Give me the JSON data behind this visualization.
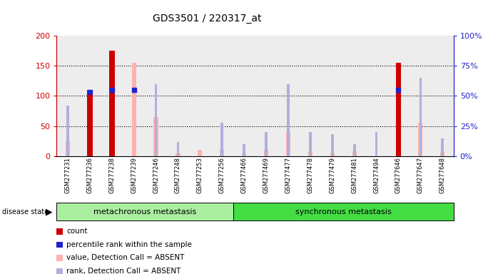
{
  "title": "GDS3501 / 220317_at",
  "samples": [
    "GSM277231",
    "GSM277236",
    "GSM277238",
    "GSM277239",
    "GSM277246",
    "GSM277248",
    "GSM277253",
    "GSM277256",
    "GSM277466",
    "GSM277469",
    "GSM277477",
    "GSM277478",
    "GSM277479",
    "GSM277481",
    "GSM277494",
    "GSM277646",
    "GSM277647",
    "GSM277648"
  ],
  "count_values": [
    0,
    110,
    175,
    0,
    0,
    0,
    0,
    0,
    0,
    0,
    0,
    0,
    0,
    0,
    0,
    155,
    0,
    0
  ],
  "percentile_rank": [
    0,
    53,
    55,
    55,
    0,
    0,
    0,
    0,
    0,
    0,
    0,
    0,
    0,
    0,
    0,
    55,
    0,
    0
  ],
  "value_absent": [
    25,
    0,
    0,
    155,
    65,
    5,
    10,
    10,
    5,
    10,
    40,
    7,
    5,
    8,
    0,
    0,
    55,
    7
  ],
  "rank_absent": [
    42,
    0,
    0,
    0,
    60,
    12,
    0,
    28,
    10,
    20,
    60,
    20,
    18,
    10,
    20,
    0,
    65,
    15
  ],
  "group1_count": 8,
  "group1_label": "metachronous metastasis",
  "group2_label": "synchronous metastasis",
  "ylim_left": [
    0,
    200
  ],
  "ylim_right": [
    0,
    100
  ],
  "yticks_left": [
    0,
    50,
    100,
    150,
    200
  ],
  "yticks_right": [
    0,
    25,
    50,
    75,
    100
  ],
  "ytick_labels_left": [
    "0",
    "50",
    "100",
    "150",
    "200"
  ],
  "ytick_labels_right": [
    "0%",
    "25%",
    "50%",
    "75%",
    "100%"
  ],
  "color_count": "#cc0000",
  "color_percentile": "#2222cc",
  "color_value_absent": "#ffb0b0",
  "color_rank_absent": "#b0b0dd",
  "background_sample": "#cccccc",
  "background_group1": "#aaeea0",
  "background_group2": "#44dd44",
  "legend_items": [
    {
      "color": "#cc0000",
      "label": "count",
      "marker": "square"
    },
    {
      "color": "#2222cc",
      "label": "percentile rank within the sample",
      "marker": "square"
    },
    {
      "color": "#ffb0b0",
      "label": "value, Detection Call = ABSENT",
      "marker": "square"
    },
    {
      "color": "#b0b0dd",
      "label": "rank, Detection Call = ABSENT",
      "marker": "square"
    }
  ]
}
